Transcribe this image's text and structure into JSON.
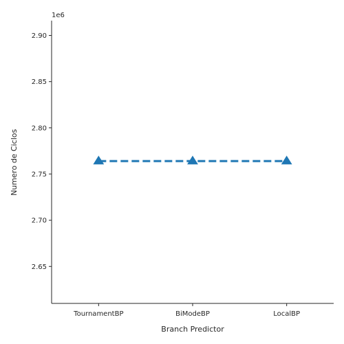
{
  "chart_data": {
    "type": "line",
    "title": "",
    "xlabel": "Branch Predictor",
    "ylabel": "Numero de Ciclos",
    "y_offset_label": "1e6",
    "categories": [
      "TournamentBP",
      "BiModeBP",
      "LocalBP"
    ],
    "series": [
      {
        "values": [
          2764000,
          2764000,
          2764000
        ]
      }
    ],
    "ylim": [
      2610000,
      2916000
    ],
    "yticks": [
      2650000,
      2700000,
      2750000,
      2800000,
      2850000,
      2900000
    ],
    "ytick_labels": [
      "2.65",
      "2.70",
      "2.75",
      "2.80",
      "2.85",
      "2.90"
    ],
    "grid": false,
    "line_style": "dashed",
    "marker": "triangle",
    "colors": {
      "series": "#1f77b4",
      "axis": "#262626"
    }
  }
}
